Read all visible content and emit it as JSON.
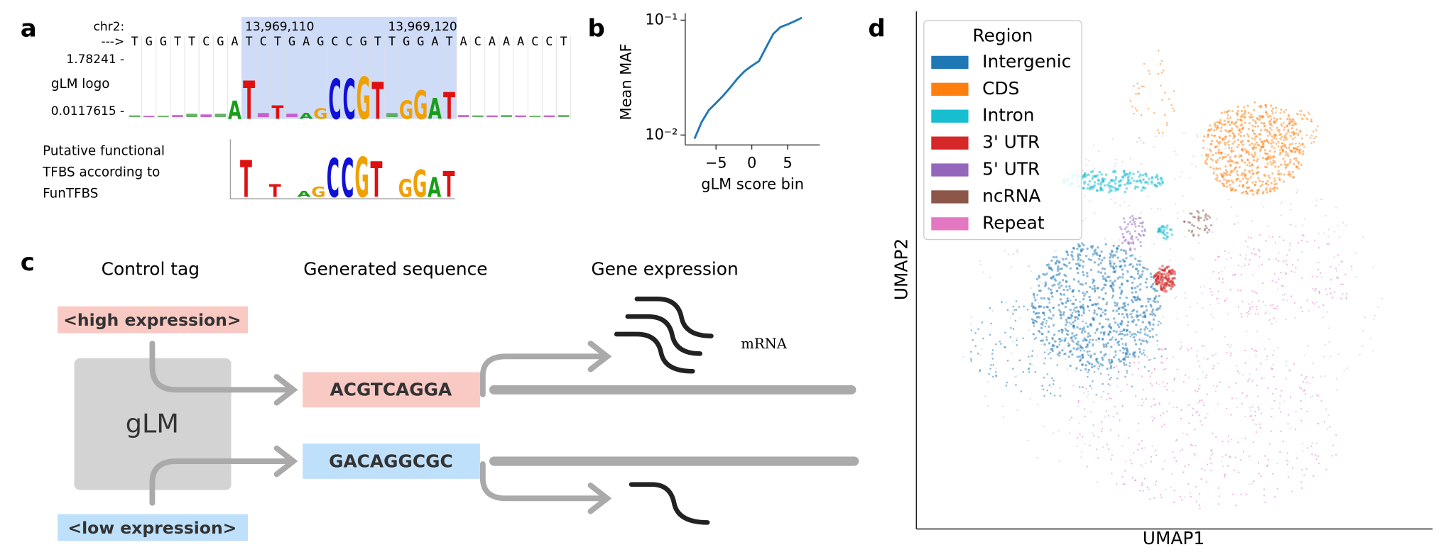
{
  "panel_labels": [
    "a",
    "b",
    "c",
    "d"
  ],
  "a": {
    "chrom": "chr2:",
    "arrow": "--->",
    "sequence": [
      "T",
      "G",
      "G",
      "T",
      "T",
      "C",
      "G",
      "A",
      "T",
      "C",
      "T",
      "G",
      "A",
      "G",
      "C",
      "C",
      "G",
      "T",
      "T",
      "G",
      "G",
      "A",
      "T",
      "A",
      "C",
      "A",
      "A",
      "A",
      "C",
      "C",
      "T"
    ],
    "positions": [
      "13,969,110",
      "13,969,120"
    ],
    "logo_max": "1.78241 -",
    "logo_min": "0.0117615 -",
    "logo_label": "gLM logo",
    "logo_heights": [
      0.05,
      0.04,
      0.04,
      0.06,
      0.1,
      0.08,
      0.1,
      0.55,
      1.15,
      0.12,
      0.4,
      0.1,
      0.18,
      0.32,
      1.2,
      1.2,
      1.25,
      1.1,
      0.12,
      0.55,
      0.85,
      0.62,
      0.8,
      0.06,
      0.05,
      0.05,
      0.06,
      0.05,
      0.04,
      0.05,
      0.06
    ],
    "tfbs_label": [
      "Putative functional",
      "TFBS according to",
      "FunTFBS"
    ]
  },
  "chart_data": {
    "type": "line",
    "xlabel": "gLM score bin",
    "ylabel": "Mean MAF",
    "log_y": true,
    "color": "#1f77b4",
    "x": [
      -8,
      -7,
      -6,
      -5,
      -4,
      -3,
      -2,
      -1,
      0,
      1,
      2,
      3,
      4,
      5,
      6,
      7
    ],
    "values": [
      0.0093,
      0.013,
      0.0165,
      0.019,
      0.022,
      0.026,
      0.031,
      0.036,
      0.04,
      0.044,
      0.058,
      0.076,
      0.087,
      0.092,
      0.098,
      0.105
    ],
    "xlim": [
      -9.3,
      9.5
    ],
    "ylim": [
      0.0082,
      0.115
    ],
    "xticks": [
      {
        "value": -5,
        "label": "−5"
      },
      0,
      5
    ],
    "yticks": [
      {
        "value": 0.01,
        "label": "10⁻²"
      },
      {
        "value": 0.1,
        "label": "10⁻¹"
      }
    ]
  },
  "c": {
    "headers": [
      "Control tag",
      "Generated sequence",
      "Gene expression"
    ],
    "high": "<high expression>",
    "low": "<low expression>",
    "model": "gLM",
    "seq_high": "ACGTCAGGA",
    "seq_low": "GACAGGCGC",
    "mrna": "mRNA"
  },
  "d": {
    "legend_title": "Region",
    "xlabel": "UMAP1",
    "ylabel": "UMAP2",
    "regions": [
      {
        "name": "Intergenic",
        "color": "#1f77b4"
      },
      {
        "name": "CDS",
        "color": "#ff7f0e"
      },
      {
        "name": "Intron",
        "color": "#17becf"
      },
      {
        "name": "3' UTR",
        "color": "#d62728"
      },
      {
        "name": "5' UTR",
        "color": "#9467bd"
      },
      {
        "name": "ncRNA",
        "color": "#8c564b"
      },
      {
        "name": "Repeat",
        "color": "#e377c2"
      }
    ]
  }
}
